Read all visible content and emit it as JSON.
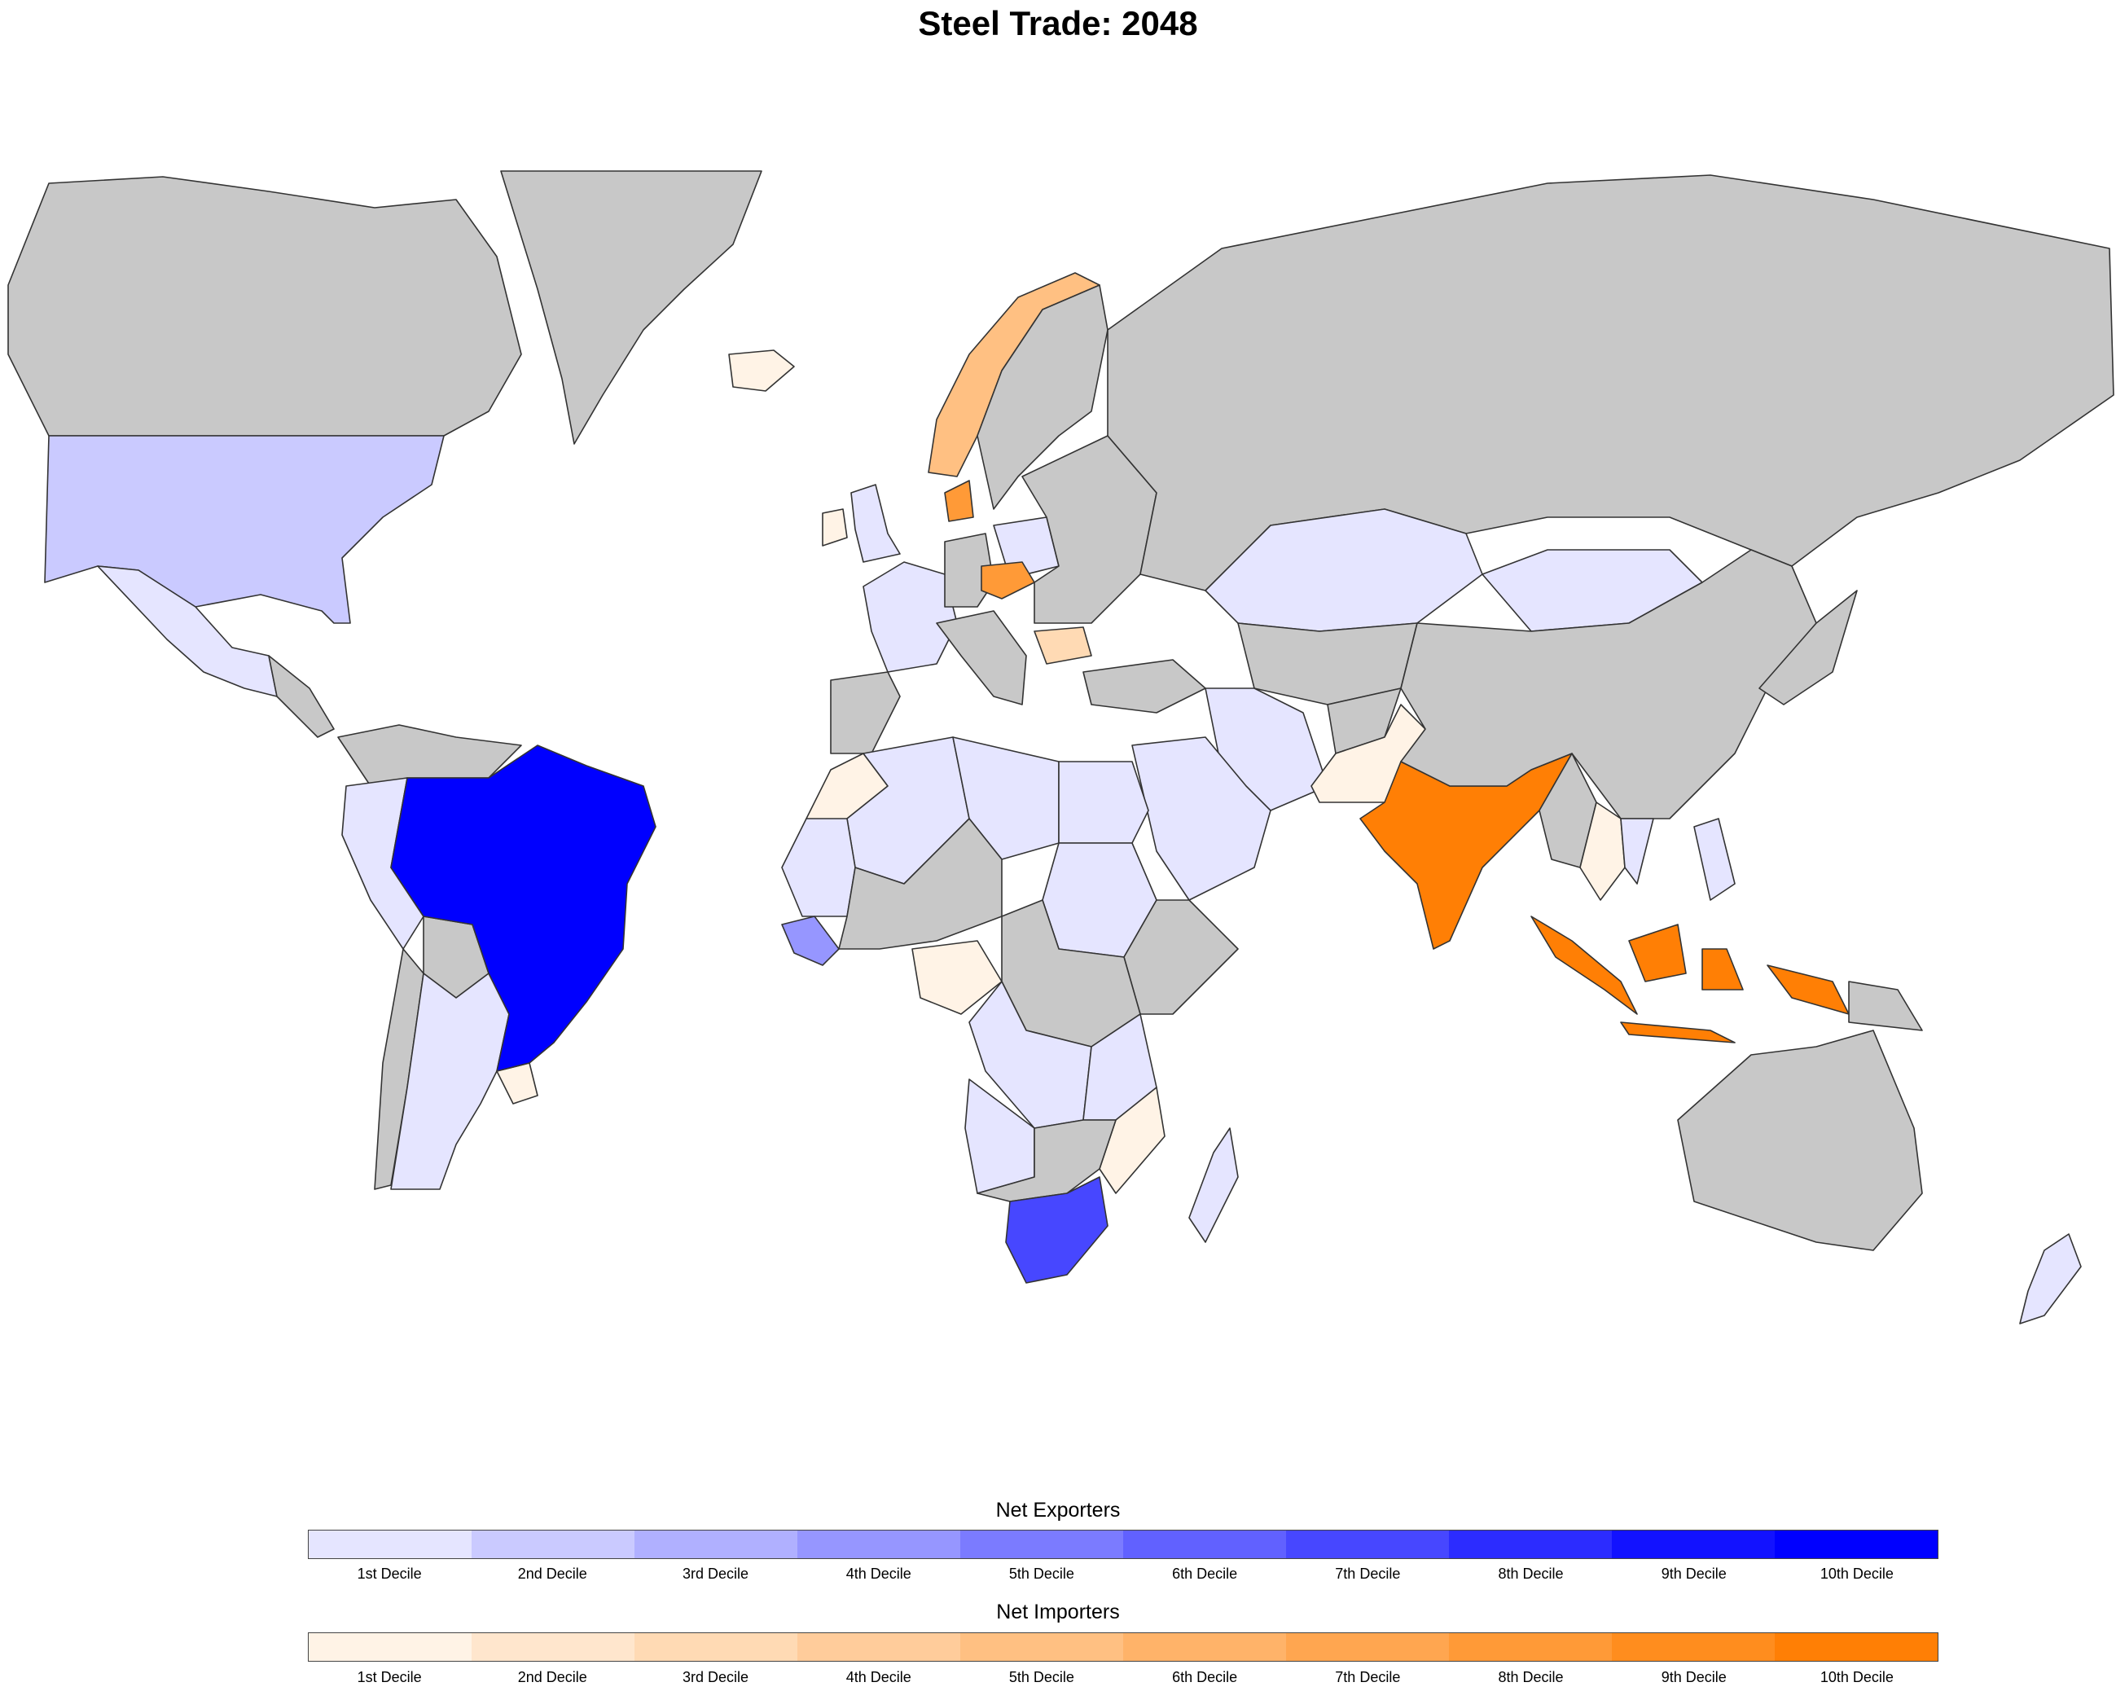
{
  "title": "Steel Trade: 2048",
  "colors": {
    "no_data": "#c8c8c8",
    "exporters": [
      "#e5e5ff",
      "#cacaff",
      "#b0b0ff",
      "#9696ff",
      "#7b7bff",
      "#6161ff",
      "#4747ff",
      "#2c2cff",
      "#1212ff",
      "#0000ff"
    ],
    "importers": [
      "#fff3e6",
      "#ffe6cd",
      "#ffdab4",
      "#ffcc9b",
      "#ffc082",
      "#ffb369",
      "#ffa650",
      "#ff9a37",
      "#ff8d1e",
      "#ff7f05"
    ]
  },
  "legend": {
    "exporters_title": "Net Exporters",
    "importers_title": "Net Importers",
    "deciles": [
      "1st Decile",
      "2nd Decile",
      "3rd Decile",
      "4th Decile",
      "5th Decile",
      "6th Decile",
      "7th Decile",
      "8th Decile",
      "9th Decile",
      "10th Decile"
    ]
  },
  "countries": {
    "Brazil": {
      "group": "exporters",
      "decile": 10
    },
    "South Africa": {
      "group": "exporters",
      "decile": 7
    },
    "Guinea": {
      "group": "exporters",
      "decile": 4
    },
    "United States": {
      "group": "exporters",
      "decile": 2
    },
    "Mexico": {
      "group": "exporters",
      "decile": 1
    },
    "Argentina": {
      "group": "exporters",
      "decile": 1
    },
    "Peru": {
      "group": "exporters",
      "decile": 1
    },
    "Kazakhstan": {
      "group": "exporters",
      "decile": 1
    },
    "Mongolia": {
      "group": "exporters",
      "decile": 1
    },
    "Iran": {
      "group": "exporters",
      "decile": 1
    },
    "Saudi Arabia": {
      "group": "exporters",
      "decile": 1
    },
    "Algeria": {
      "group": "exporters",
      "decile": 1
    },
    "Libya": {
      "group": "exporters",
      "decile": 1
    },
    "Egypt": {
      "group": "exporters",
      "decile": 1
    },
    "Sudan": {
      "group": "exporters",
      "decile": 1
    },
    "Mauritania": {
      "group": "exporters",
      "decile": 1
    },
    "DR Congo": {
      "group": "exporters",
      "decile": 1
    },
    "Angola": {
      "group": "exporters",
      "decile": 1
    },
    "Tanzania": {
      "group": "exporters",
      "decile": 1
    },
    "Madagascar": {
      "group": "exporters",
      "decile": 1
    },
    "France": {
      "group": "exporters",
      "decile": 1
    },
    "United Kingdom": {
      "group": "exporters",
      "decile": 1
    },
    "Poland": {
      "group": "exporters",
      "decile": 1
    },
    "Vietnam": {
      "group": "exporters",
      "decile": 1
    },
    "Philippines": {
      "group": "exporters",
      "decile": 1
    },
    "New Zealand": {
      "group": "exporters",
      "decile": 1
    },
    "India": {
      "group": "importers",
      "decile": 10
    },
    "Indonesia": {
      "group": "importers",
      "decile": 10
    },
    "Czechia": {
      "group": "importers",
      "decile": 8
    },
    "Denmark": {
      "group": "importers",
      "decile": 8
    },
    "Norway": {
      "group": "importers",
      "decile": 5
    },
    "Bulgaria": {
      "group": "importers",
      "decile": 3
    },
    "Iceland": {
      "group": "importers",
      "decile": 1
    },
    "Morocco": {
      "group": "importers",
      "decile": 1
    },
    "Nigeria": {
      "group": "importers",
      "decile": 1
    },
    "Pakistan": {
      "group": "importers",
      "decile": 1
    },
    "Mozambique": {
      "group": "importers",
      "decile": 1
    },
    "Uruguay": {
      "group": "importers",
      "decile": 1
    },
    "Thailand": {
      "group": "importers",
      "decile": 1
    },
    "Ireland": {
      "group": "importers",
      "decile": 1
    }
  }
}
